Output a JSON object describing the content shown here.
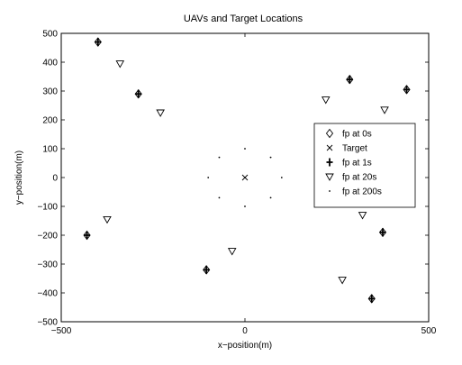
{
  "chart_data": {
    "type": "scatter",
    "title": "UAVs and Target Locations",
    "xlabel": "x−position(m)",
    "ylabel": "y−position(m)",
    "xlim": [
      -500,
      500
    ],
    "ylim": [
      -500,
      500
    ],
    "xticks": [
      -500,
      0,
      500
    ],
    "yticks": [
      -500,
      -400,
      -300,
      -200,
      -100,
      0,
      100,
      200,
      300,
      400,
      500
    ],
    "xtick_labels": [
      "−500",
      "0",
      "500"
    ],
    "ytick_labels": [
      "−500",
      "−400",
      "−300",
      "−200",
      "−100",
      "0",
      "100",
      "200",
      "300",
      "400",
      "500"
    ],
    "grid": false,
    "legend_position": "right",
    "series": [
      {
        "name": "fp at 0s",
        "marker": "diamond",
        "points": [
          [
            -400,
            470
          ],
          [
            -290,
            290
          ],
          [
            285,
            340
          ],
          [
            440,
            305
          ],
          [
            -430,
            -200
          ],
          [
            -105,
            -320
          ],
          [
            375,
            -190
          ],
          [
            345,
            -420
          ]
        ]
      },
      {
        "name": "Target",
        "marker": "x",
        "points": [
          [
            0,
            0
          ]
        ]
      },
      {
        "name": "fp at 1s",
        "marker": "plus",
        "points": [
          [
            -400,
            470
          ],
          [
            -290,
            290
          ],
          [
            285,
            340
          ],
          [
            440,
            305
          ],
          [
            -430,
            -200
          ],
          [
            -105,
            -320
          ],
          [
            375,
            -190
          ],
          [
            345,
            -420
          ]
        ]
      },
      {
        "name": "fp at 20s",
        "marker": "triangle-down",
        "points": [
          [
            -340,
            395
          ],
          [
            -230,
            225
          ],
          [
            220,
            270
          ],
          [
            380,
            235
          ],
          [
            -375,
            -145
          ],
          [
            -35,
            -255
          ],
          [
            320,
            -130
          ],
          [
            265,
            -355
          ]
        ]
      },
      {
        "name": "fp at 200s",
        "marker": "dot",
        "points": [
          [
            0,
            100
          ],
          [
            70,
            70
          ],
          [
            100,
            0
          ],
          [
            70,
            -70
          ],
          [
            0,
            -100
          ],
          [
            -70,
            -70
          ],
          [
            -100,
            0
          ],
          [
            -70,
            70
          ]
        ]
      }
    ]
  }
}
